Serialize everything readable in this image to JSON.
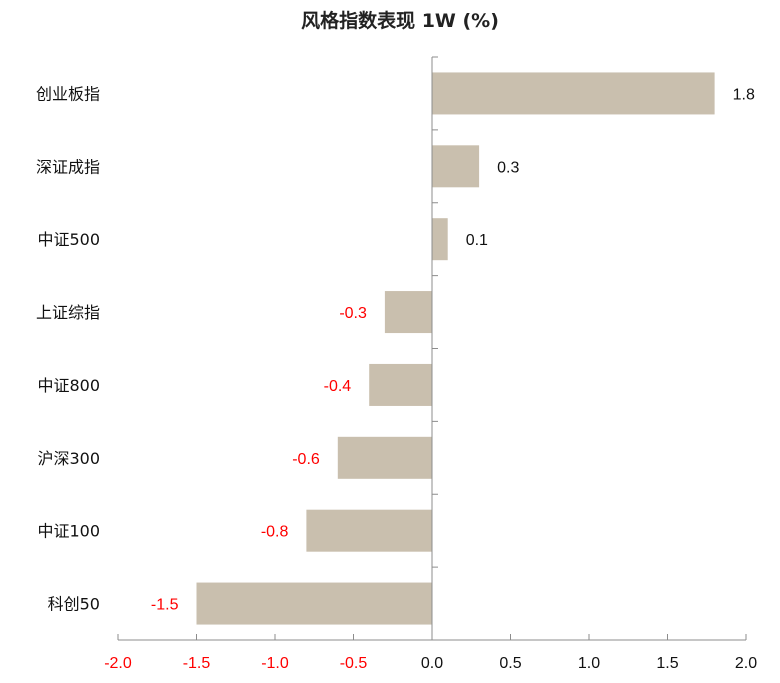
{
  "chart_data": {
    "type": "bar",
    "orientation": "horizontal",
    "title": "风格指数表现 1W (%)",
    "categories": [
      "创业板指",
      "深证成指",
      "中证500",
      "上证综指",
      "中证800",
      "沪深300",
      "中证100",
      "科创50"
    ],
    "values": [
      1.8,
      0.3,
      0.1,
      -0.3,
      -0.4,
      -0.6,
      -0.8,
      -1.5
    ],
    "value_labels": [
      "1.8",
      "0.3",
      "0.1",
      "-0.3",
      "-0.4",
      "-0.6",
      "-0.8",
      "-1.5"
    ],
    "xlim": [
      -2.0,
      2.0
    ],
    "xticks": [
      -2.0,
      -1.5,
      -1.0,
      -0.5,
      0.0,
      0.5,
      1.0,
      1.5,
      2.0
    ],
    "xtick_labels": [
      "-2.0",
      "-1.5",
      "-1.0",
      "-0.5",
      "0.0",
      "0.5",
      "1.0",
      "1.5",
      "2.0"
    ],
    "xlabel": "",
    "ylabel": "",
    "grid": false,
    "legend": "none",
    "colors": {
      "bar": "#c9bfae",
      "axis": "#8c8c8c",
      "positive_label": "#111111",
      "negative_label": "#ff0000"
    }
  }
}
